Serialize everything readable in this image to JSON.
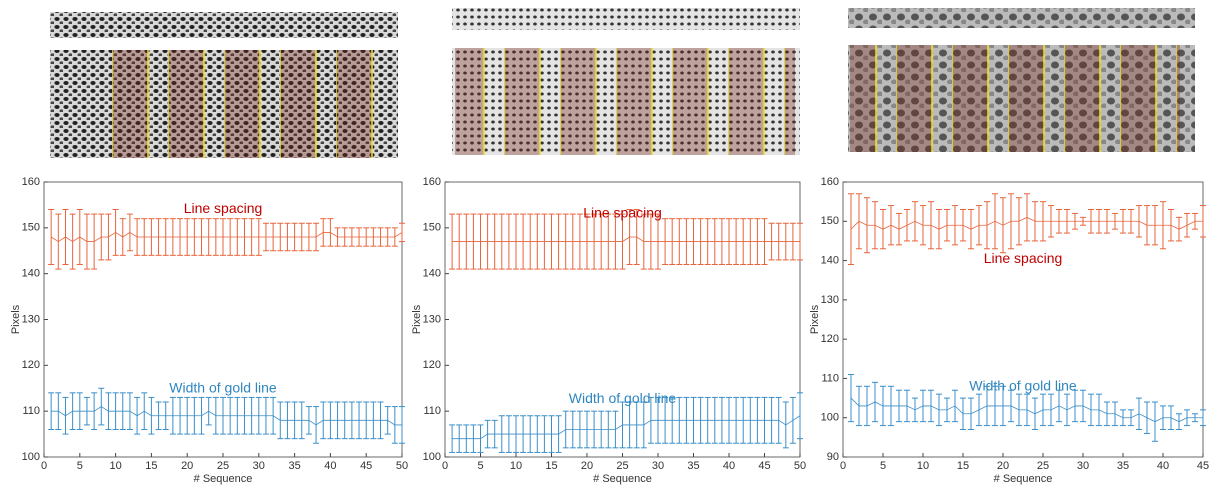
{
  "chart_data": [
    {
      "type": "errorbar",
      "xlabel": "# Sequence",
      "ylabel": "Pixels",
      "xlim": [
        0,
        50
      ],
      "ylim": [
        100,
        160
      ],
      "xticks": [
        0,
        5,
        10,
        15,
        20,
        25,
        30,
        35,
        40,
        45,
        50
      ],
      "yticks": [
        100,
        110,
        120,
        130,
        140,
        150,
        160
      ],
      "x": [
        1,
        2,
        3,
        4,
        5,
        6,
        7,
        8,
        9,
        10,
        11,
        12,
        13,
        14,
        15,
        16,
        17,
        18,
        19,
        20,
        21,
        22,
        23,
        24,
        25,
        26,
        27,
        28,
        29,
        30,
        31,
        32,
        33,
        34,
        35,
        36,
        37,
        38,
        39,
        40,
        41,
        42,
        43,
        44,
        45,
        46,
        47,
        48,
        49,
        50
      ],
      "series": [
        {
          "name": "Line spacing",
          "color": "#e8643c",
          "label_color": "#c00000",
          "values": [
            148,
            147,
            148,
            147,
            148,
            147,
            147,
            148,
            148,
            149,
            148,
            149,
            148,
            148,
            148,
            148,
            148,
            148,
            148,
            148,
            148,
            148,
            148,
            148,
            148,
            148,
            148,
            148,
            148,
            148,
            148,
            148,
            148,
            148,
            148,
            148,
            148,
            148,
            149,
            149,
            148,
            148,
            148,
            148,
            148,
            148,
            148,
            148,
            148,
            149
          ],
          "errors": [
            6,
            6,
            6,
            6,
            6,
            6,
            6,
            5,
            5,
            5,
            4,
            4,
            4,
            4,
            4,
            4,
            4,
            4,
            4,
            4,
            4,
            4,
            4,
            4,
            4,
            4,
            4,
            4,
            4,
            4,
            3,
            3,
            3,
            3,
            3,
            3,
            3,
            3,
            3,
            3,
            2,
            2,
            2,
            2,
            2,
            2,
            2,
            2,
            2,
            2
          ]
        },
        {
          "name": "Width of gold line",
          "color": "#3b8fc8",
          "label_color": "#2e86c1",
          "values": [
            110,
            110,
            109,
            110,
            110,
            110,
            110,
            111,
            110,
            110,
            110,
            110,
            109,
            110,
            109,
            109,
            109,
            109,
            109,
            109,
            109,
            109,
            110,
            109,
            109,
            109,
            109,
            109,
            109,
            109,
            109,
            109,
            108,
            108,
            108,
            108,
            108,
            107,
            108,
            108,
            108,
            108,
            108,
            108,
            108,
            108,
            108,
            108,
            107,
            107
          ],
          "errors": [
            4,
            4,
            4,
            4,
            4,
            3,
            4,
            4,
            4,
            4,
            4,
            4,
            4,
            4,
            4,
            3,
            3,
            4,
            4,
            4,
            4,
            4,
            3,
            4,
            4,
            4,
            4,
            4,
            4,
            4,
            4,
            4,
            4,
            4,
            4,
            4,
            3,
            4,
            4,
            4,
            4,
            4,
            4,
            4,
            4,
            4,
            4,
            3,
            4,
            4
          ]
        }
      ]
    },
    {
      "type": "errorbar",
      "xlabel": "# Sequence",
      "ylabel": "Pixels",
      "xlim": [
        0,
        50
      ],
      "ylim": [
        100,
        160
      ],
      "xticks": [
        0,
        5,
        10,
        15,
        20,
        25,
        30,
        35,
        40,
        45,
        50
      ],
      "yticks": [
        100,
        110,
        120,
        130,
        140,
        150,
        160
      ],
      "x": [
        1,
        2,
        3,
        4,
        5,
        6,
        7,
        8,
        9,
        10,
        11,
        12,
        13,
        14,
        15,
        16,
        17,
        18,
        19,
        20,
        21,
        22,
        23,
        24,
        25,
        26,
        27,
        28,
        29,
        30,
        31,
        32,
        33,
        34,
        35,
        36,
        37,
        38,
        39,
        40,
        41,
        42,
        43,
        44,
        45,
        46,
        47,
        48,
        49,
        50
      ],
      "series": [
        {
          "name": "Line spacing",
          "color": "#e8643c",
          "label_color": "#c00000",
          "values": [
            147,
            147,
            147,
            147,
            147,
            147,
            147,
            147,
            147,
            147,
            147,
            147,
            147,
            147,
            147,
            147,
            147,
            147,
            147,
            147,
            147,
            147,
            147,
            147,
            147,
            148,
            148,
            147,
            147,
            147,
            147,
            147,
            147,
            147,
            147,
            147,
            147,
            147,
            147,
            147,
            147,
            147,
            147,
            147,
            147,
            147,
            147,
            147,
            147,
            147
          ],
          "errors": [
            6,
            6,
            6,
            6,
            6,
            6,
            6,
            6,
            6,
            6,
            6,
            6,
            6,
            6,
            6,
            6,
            6,
            6,
            6,
            6,
            6,
            6,
            6,
            6,
            6,
            6,
            6,
            6,
            6,
            6,
            5,
            5,
            5,
            5,
            5,
            5,
            5,
            5,
            5,
            5,
            5,
            5,
            5,
            5,
            5,
            4,
            4,
            4,
            4,
            4
          ]
        },
        {
          "name": "Width of gold line",
          "color": "#3b8fc8",
          "label_color": "#2e86c1",
          "values": [
            104,
            104,
            104,
            104,
            104,
            105,
            105,
            105,
            105,
            105,
            105,
            105,
            105,
            105,
            105,
            105,
            106,
            106,
            106,
            106,
            106,
            106,
            106,
            106,
            107,
            107,
            107,
            107,
            108,
            108,
            108,
            108,
            108,
            108,
            108,
            108,
            108,
            108,
            108,
            108,
            108,
            108,
            108,
            108,
            108,
            108,
            108,
            107,
            108,
            109
          ],
          "errors": [
            3,
            3,
            3,
            3,
            3,
            3,
            3,
            4,
            4,
            4,
            4,
            4,
            4,
            4,
            4,
            4,
            4,
            4,
            4,
            4,
            4,
            4,
            4,
            4,
            5,
            5,
            5,
            5,
            5,
            5,
            5,
            5,
            5,
            5,
            5,
            5,
            5,
            5,
            5,
            5,
            5,
            5,
            5,
            5,
            5,
            5,
            5,
            5,
            5,
            5
          ]
        }
      ]
    },
    {
      "type": "errorbar",
      "xlabel": "# Sequence",
      "ylabel": "Pixels",
      "xlim": [
        0,
        45
      ],
      "ylim": [
        90,
        160
      ],
      "xticks": [
        0,
        5,
        10,
        15,
        20,
        25,
        30,
        35,
        40,
        45
      ],
      "yticks": [
        90,
        100,
        110,
        120,
        130,
        140,
        150,
        160
      ],
      "x": [
        1,
        2,
        3,
        4,
        5,
        6,
        7,
        8,
        9,
        10,
        11,
        12,
        13,
        14,
        15,
        16,
        17,
        18,
        19,
        20,
        21,
        22,
        23,
        24,
        25,
        26,
        27,
        28,
        29,
        30,
        31,
        32,
        33,
        34,
        35,
        36,
        37,
        38,
        39,
        40,
        41,
        42,
        43,
        44,
        45
      ],
      "series": [
        {
          "name": "Line spacing",
          "color": "#e8643c",
          "label_color": "#c00000",
          "values": [
            148,
            150,
            149,
            149,
            148,
            149,
            148,
            149,
            150,
            149,
            149,
            148,
            149,
            149,
            149,
            148,
            149,
            149,
            150,
            149,
            150,
            150,
            151,
            150,
            150,
            150,
            150,
            150,
            150,
            150,
            150,
            150,
            150,
            150,
            150,
            150,
            150,
            149,
            149,
            149,
            149,
            148,
            149,
            150,
            150
          ],
          "errors": [
            9,
            7,
            7,
            6,
            5,
            5,
            4,
            4,
            5,
            5,
            6,
            5,
            4,
            5,
            4,
            5,
            5,
            6,
            7,
            7,
            7,
            6,
            6,
            5,
            5,
            4,
            3,
            3,
            2,
            1,
            3,
            3,
            3,
            2,
            3,
            3,
            4,
            5,
            5,
            6,
            4,
            3,
            3,
            2,
            4
          ]
        },
        {
          "name": "Width of gold line",
          "color": "#3b8fc8",
          "label_color": "#2e86c1",
          "values": [
            105,
            103,
            103,
            104,
            103,
            103,
            103,
            103,
            102,
            103,
            103,
            102,
            102,
            103,
            101,
            101,
            102,
            103,
            103,
            103,
            103,
            102,
            102,
            101,
            102,
            102,
            103,
            102,
            103,
            103,
            102,
            102,
            101,
            101,
            100,
            100,
            101,
            100,
            99,
            100,
            100,
            99,
            100,
            100,
            100
          ],
          "errors": [
            6,
            5,
            5,
            5,
            5,
            5,
            4,
            4,
            3,
            4,
            4,
            4,
            3,
            4,
            4,
            4,
            4,
            5,
            5,
            5,
            4,
            4,
            4,
            4,
            4,
            4,
            4,
            4,
            4,
            4,
            4,
            4,
            3,
            3,
            2,
            2,
            4,
            4,
            5,
            3,
            3,
            2,
            2,
            1,
            2
          ]
        }
      ]
    }
  ]
}
